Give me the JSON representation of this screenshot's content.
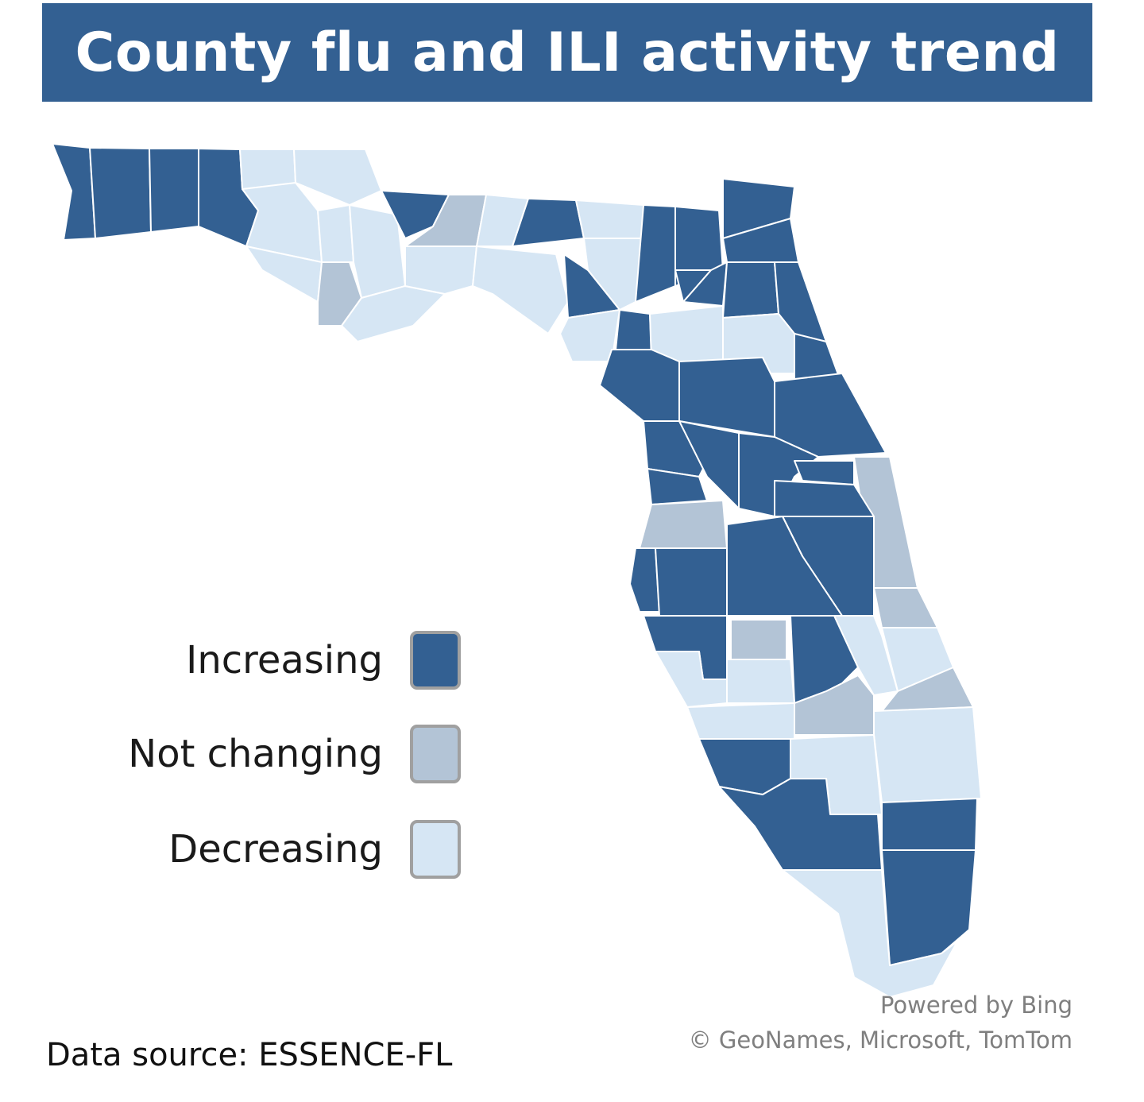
{
  "title": "County flu and ILI activity trend",
  "colors": {
    "title_bg": "#336092",
    "increasing": "#336092",
    "not_changing": "#B3C4D6",
    "decreasing": "#D6E6F4",
    "county_border": "#FFFFFF"
  },
  "legend": {
    "items": [
      {
        "label": "Increasing",
        "key": "increasing",
        "color": "#336092"
      },
      {
        "label": "Not changing",
        "key": "not_changing",
        "color": "#B3C4D6"
      },
      {
        "label": "Decreasing",
        "key": "decreasing",
        "color": "#D6E6F4"
      }
    ]
  },
  "source": "Data source: ESSENCE-FL",
  "credits": {
    "line1": "Powered by Bing",
    "line2": "© GeoNames, Microsoft, TomTom"
  }
}
